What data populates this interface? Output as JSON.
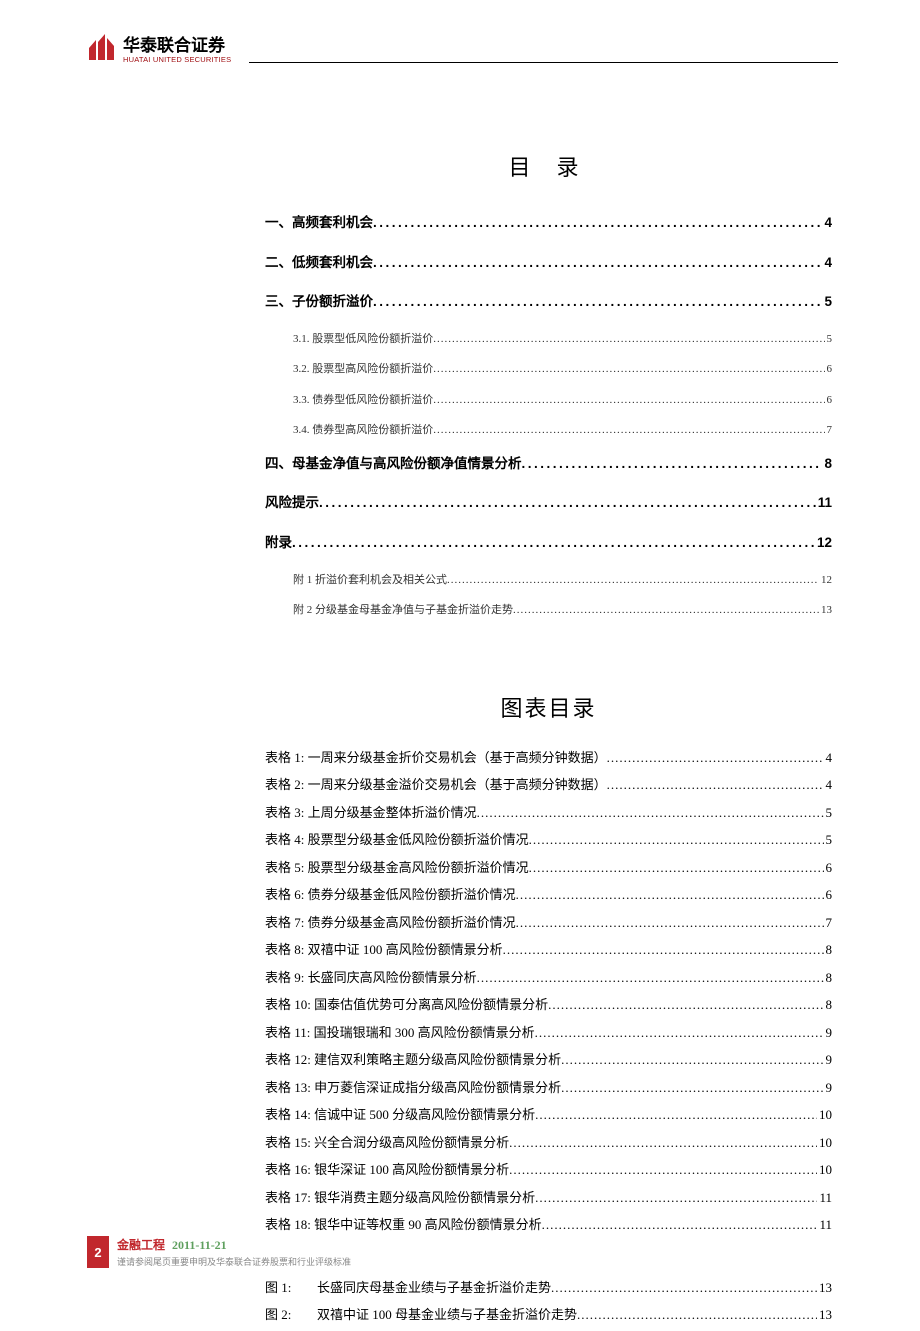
{
  "brand": {
    "name_cn": "华泰联合证券",
    "name_en": "HUATAI UNITED SECURITIES",
    "accent_color": "#c1272d"
  },
  "toc": {
    "title": "目 录",
    "items": [
      {
        "level": 1,
        "label": "一、高频套利机会",
        "page": "4"
      },
      {
        "level": 1,
        "label": "二、低频套利机会",
        "page": "4"
      },
      {
        "level": 1,
        "label": "三、子份额折溢价",
        "page": "5"
      },
      {
        "level": 2,
        "label": "3.1. 股票型低风险份额折溢价",
        "page": "5"
      },
      {
        "level": 2,
        "label": "3.2. 股票型高风险份额折溢价",
        "page": "6"
      },
      {
        "level": 2,
        "label": "3.3. 债券型低风险份额折溢价",
        "page": "6"
      },
      {
        "level": 2,
        "label": "3.4. 债券型高风险份额折溢价",
        "page": "7"
      },
      {
        "level": 1,
        "label": "四、母基金净值与高风险份额净值情景分析",
        "page": "8"
      },
      {
        "level": 1,
        "label": "风险提示",
        "page": "11"
      },
      {
        "level": 1,
        "label": "附录",
        "page": "12"
      },
      {
        "level": 2,
        "label": "附 1 折溢价套利机会及相关公式",
        "page": "12"
      },
      {
        "level": 2,
        "label": "附 2 分级基金母基金净值与子基金折溢价走势",
        "page": "13"
      }
    ]
  },
  "tables_list": {
    "title": "图表目录",
    "items": [
      {
        "prefix": "表格 1:",
        "label": "一周来分级基金折价交易机会（基于高频分钟数据）",
        "page": "4"
      },
      {
        "prefix": "表格 2:",
        "label": "一周来分级基金溢价交易机会（基于高频分钟数据）",
        "page": "4"
      },
      {
        "prefix": "表格 3:",
        "label": "上周分级基金整体折溢价情况",
        "page": "5"
      },
      {
        "prefix": "表格 4:",
        "label": "股票型分级基金低风险份额折溢价情况",
        "page": "5"
      },
      {
        "prefix": "表格 5:",
        "label": "股票型分级基金高风险份额折溢价情况",
        "page": "6"
      },
      {
        "prefix": "表格 6:",
        "label": "债券分级基金低风险份额折溢价情况",
        "page": "6"
      },
      {
        "prefix": "表格 7:",
        "label": "债券分级基金高风险份额折溢价情况",
        "page": "7"
      },
      {
        "prefix": "表格 8:",
        "label": "双禧中证 100 高风险份额情景分析",
        "page": "8"
      },
      {
        "prefix": "表格 9:",
        "label": "长盛同庆高风险份额情景分析",
        "page": "8"
      },
      {
        "prefix": "表格 10:",
        "label": "国泰估值优势可分离高风险份额情景分析",
        "page": "8"
      },
      {
        "prefix": "表格 11:",
        "label": "国投瑞银瑞和 300 高风险份额情景分析",
        "page": "9"
      },
      {
        "prefix": "表格 12:",
        "label": "建信双利策略主题分级高风险份额情景分析",
        "page": "9"
      },
      {
        "prefix": "表格 13:",
        "label": "申万菱信深证成指分级高风险份额情景分析",
        "page": "9"
      },
      {
        "prefix": "表格 14:",
        "label": "信诚中证 500 分级高风险份额情景分析",
        "page": "10"
      },
      {
        "prefix": "表格 15:",
        "label": "兴全合润分级高风险份额情景分析",
        "page": "10"
      },
      {
        "prefix": "表格 16:",
        "label": "银华深证 100 高风险份额情景分析",
        "page": "10"
      },
      {
        "prefix": "表格 17:",
        "label": "银华消费主题分级高风险份额情景分析",
        "page": "11"
      },
      {
        "prefix": "表格 18:",
        "label": "银华中证等权重 90 高风险份额情景分析",
        "page": "11"
      }
    ]
  },
  "figures_list": {
    "items": [
      {
        "prefix": "图 1:",
        "label": "长盛同庆母基金业绩与子基金折溢价走势",
        "page": "13"
      },
      {
        "prefix": "图 2:",
        "label": "双禧中证 100 母基金业绩与子基金折溢价走势",
        "page": "13"
      }
    ]
  },
  "footer": {
    "page_number": "2",
    "category": "金融工程",
    "date": "2011-11-21",
    "disclaimer": "谨请参阅尾页重要申明及华泰联合证券股票和行业评级标准"
  }
}
